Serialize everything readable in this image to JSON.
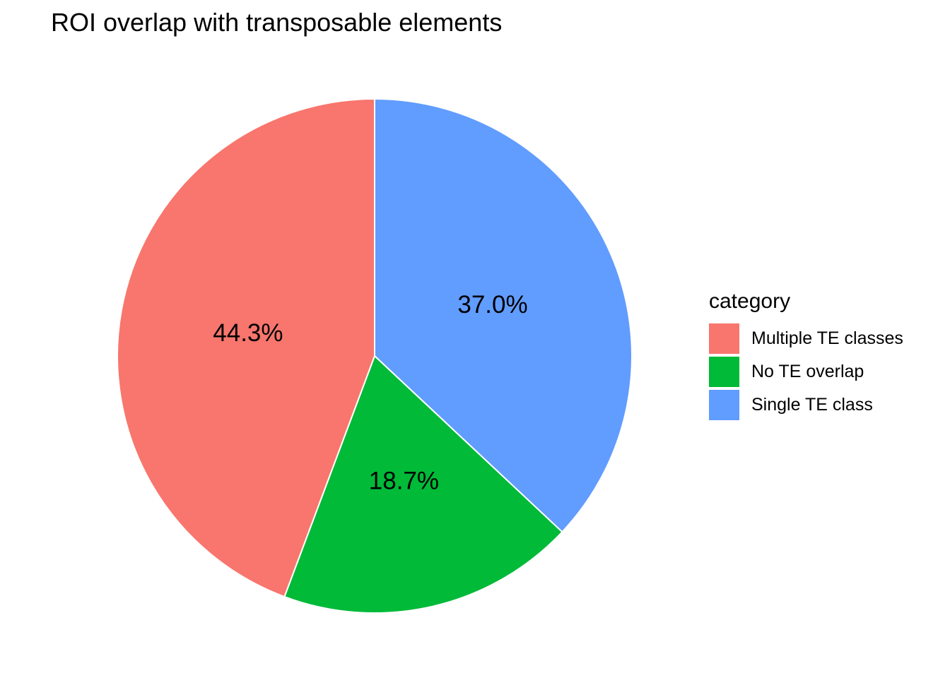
{
  "title": "ROI overlap with transposable elements",
  "chart_data": {
    "type": "pie",
    "title": "ROI overlap with transposable elements",
    "start_angle_deg": 0,
    "direction": "clockwise-from-top",
    "slices_draw_order_clockwise": [
      {
        "category": "Single TE class",
        "value_pct": 37.0,
        "label": "37.0%",
        "color": "#619CFF"
      },
      {
        "category": "No TE overlap",
        "value_pct": 18.7,
        "label": "18.7%",
        "color": "#00BA38"
      },
      {
        "category": "Multiple TE classes",
        "value_pct": 44.3,
        "label": "44.3%",
        "color": "#F8766D"
      }
    ],
    "label_color": "#000000",
    "slice_border_color": "#FFFFFF",
    "legend_position": "right"
  },
  "legend": {
    "title": "category",
    "items": [
      {
        "label": "Multiple TE classes",
        "color": "#F8766D"
      },
      {
        "label": "No TE overlap",
        "color": "#00BA38"
      },
      {
        "label": "Single TE class",
        "color": "#619CFF"
      }
    ]
  }
}
